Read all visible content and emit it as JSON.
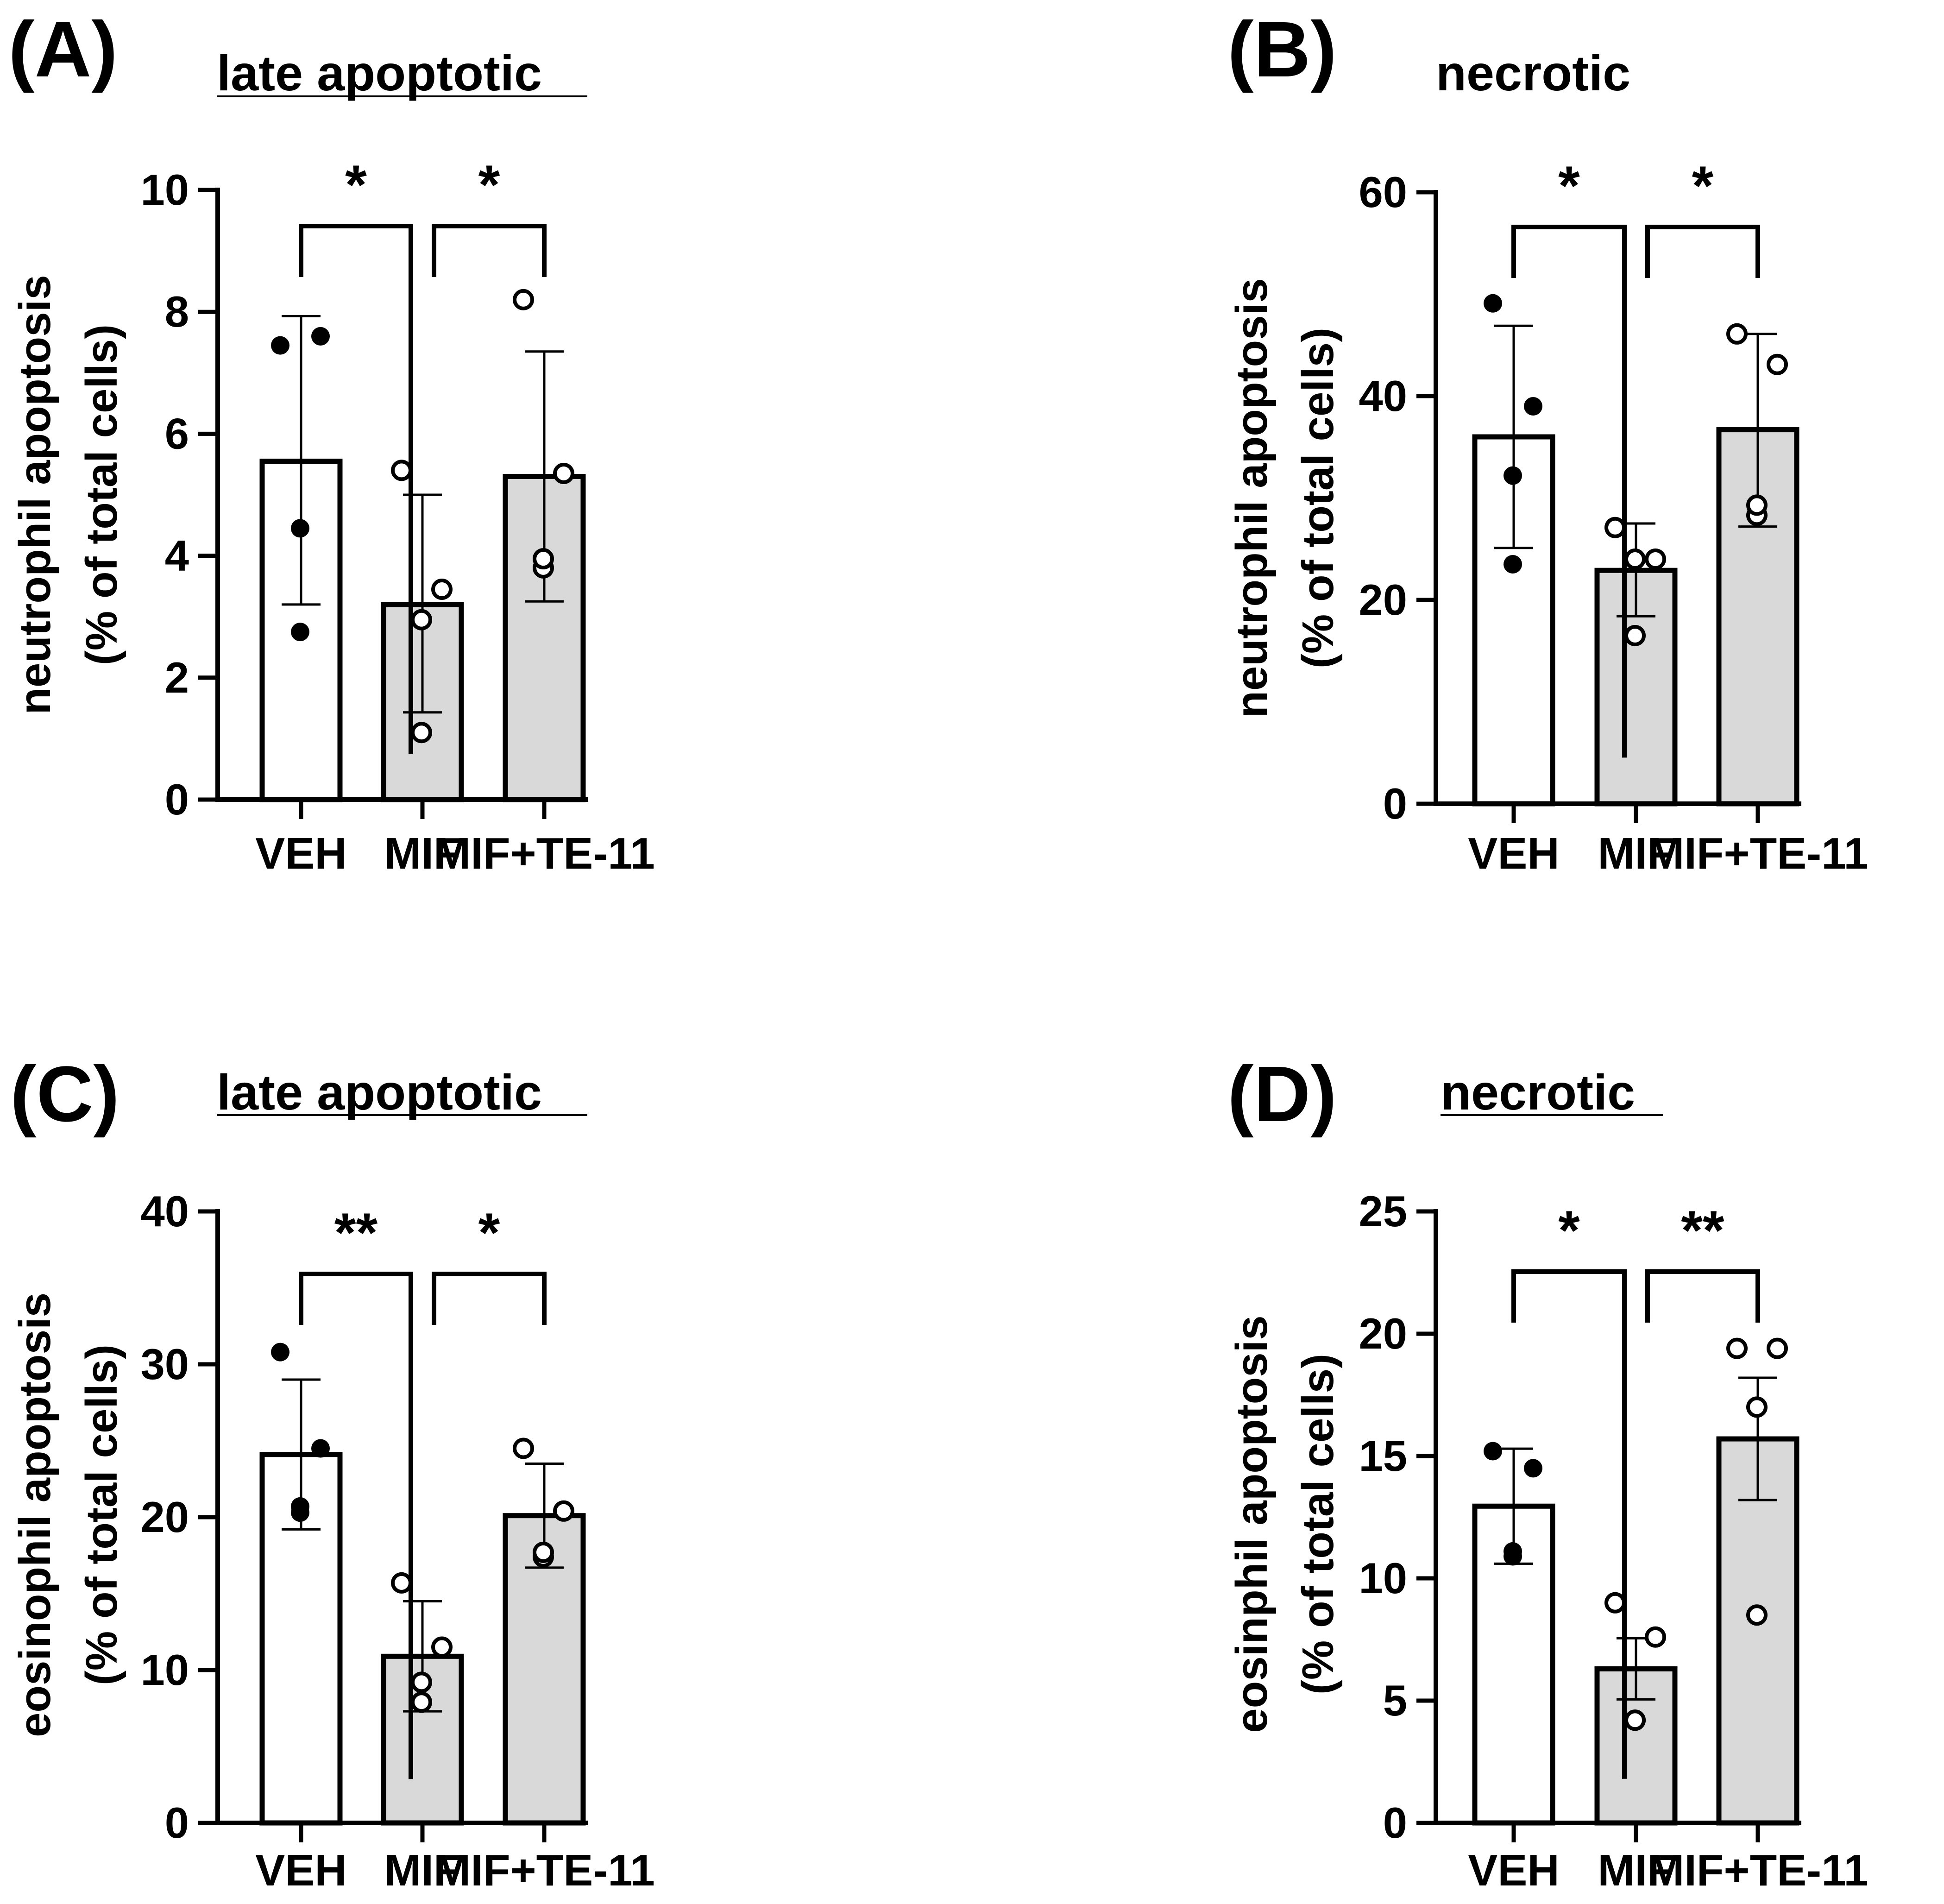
{
  "colors": {
    "veh_fill": "#ffffff",
    "treated_fill": "#d9d9d9",
    "stroke": "#000000"
  },
  "chart_data": [
    {
      "id": "A",
      "panel_label": "(A)",
      "title": "late apoptotic",
      "type": "bar",
      "ylabel_line1": "neutrophil apoptosis",
      "ylabel_line2": "(% of total cells)",
      "categories": [
        "VEH",
        "MIF",
        "MIF+TE-11"
      ],
      "ylim": [
        0,
        10
      ],
      "yticks": [
        0,
        2,
        4,
        6,
        8,
        10
      ],
      "series": [
        {
          "name": "VEH",
          "mean": 5.55,
          "sd_low": 3.2,
          "sd_high": 7.93,
          "points": [
            7.45,
            7.6,
            4.45,
            2.75
          ],
          "marker": "filled"
        },
        {
          "name": "MIF",
          "mean": 3.2,
          "sd_low": 1.43,
          "sd_high": 5.0,
          "points": [
            5.4,
            3.45,
            2.95,
            1.1
          ],
          "marker": "open"
        },
        {
          "name": "MIF+TE-11",
          "mean": 5.3,
          "sd_low": 3.25,
          "sd_high": 7.35,
          "points": [
            8.2,
            5.35,
            3.8,
            3.95
          ],
          "marker": "open"
        }
      ],
      "comparisons": [
        {
          "from": "VEH",
          "to": "MIF",
          "label": "*"
        },
        {
          "from": "MIF",
          "to": "MIF+TE-11",
          "label": "*"
        }
      ]
    },
    {
      "id": "B",
      "panel_label": "(B)",
      "title": "necrotic",
      "type": "bar",
      "ylabel_line1": "neutrophil apoptosis",
      "ylabel_line2": "(% of total cells)",
      "categories": [
        "VEH",
        "MIF",
        "MIF+TE-11"
      ],
      "ylim": [
        0,
        60
      ],
      "yticks": [
        0,
        20,
        40,
        60
      ],
      "series": [
        {
          "name": "VEH",
          "mean": 36,
          "sd_low": 25.1,
          "sd_high": 46.9,
          "points": [
            49.1,
            39.0,
            32.2,
            23.5
          ],
          "marker": "filled"
        },
        {
          "name": "MIF",
          "mean": 22.9,
          "sd_low": 18.4,
          "sd_high": 27.5,
          "points": [
            27.1,
            24.0,
            24.0,
            16.5
          ],
          "marker": "open"
        },
        {
          "name": "MIF+TE-11",
          "mean": 36.7,
          "sd_low": 27.2,
          "sd_high": 46.1,
          "points": [
            46.1,
            43.1,
            28.3,
            29.3
          ],
          "marker": "open"
        }
      ],
      "comparisons": [
        {
          "from": "VEH",
          "to": "MIF",
          "label": "*"
        },
        {
          "from": "MIF",
          "to": "MIF+TE-11",
          "label": "*"
        }
      ]
    },
    {
      "id": "C",
      "panel_label": "(C)",
      "title": "late apoptotic",
      "type": "bar",
      "ylabel_line1": "eosinophil apoptosis",
      "ylabel_line2": "(% of total cells)",
      "categories": [
        "VEH",
        "MIF",
        "MIF+TE-11"
      ],
      "ylim": [
        0,
        40
      ],
      "yticks": [
        0,
        10,
        20,
        30,
        40
      ],
      "series": [
        {
          "name": "VEH",
          "mean": 24.1,
          "sd_low": 19.2,
          "sd_high": 29.0,
          "points": [
            30.8,
            24.5,
            20.3,
            20.7
          ],
          "marker": "filled"
        },
        {
          "name": "MIF",
          "mean": 10.9,
          "sd_low": 7.3,
          "sd_high": 14.5,
          "points": [
            15.7,
            11.5,
            9.2,
            7.9
          ],
          "marker": "open"
        },
        {
          "name": "MIF+TE-11",
          "mean": 20.1,
          "sd_low": 16.7,
          "sd_high": 23.5,
          "points": [
            24.5,
            20.4,
            17.4,
            17.7
          ],
          "marker": "open"
        }
      ],
      "comparisons": [
        {
          "from": "VEH",
          "to": "MIF",
          "label": "**"
        },
        {
          "from": "MIF",
          "to": "MIF+TE-11",
          "label": "*"
        }
      ]
    },
    {
      "id": "D",
      "panel_label": "(D)",
      "title": "necrotic",
      "type": "bar",
      "ylabel_line1": "eosinphil apoptosis",
      "ylabel_line2": "(% of total cells)",
      "categories": [
        "VEH",
        "MIF",
        "MIF+TE-11"
      ],
      "ylim": [
        0,
        25
      ],
      "yticks": [
        0,
        5,
        10,
        15,
        20,
        25
      ],
      "series": [
        {
          "name": "VEH",
          "mean": 12.95,
          "sd_low": 10.6,
          "sd_high": 15.3,
          "points": [
            15.2,
            14.5,
            10.9,
            11.1
          ],
          "marker": "filled"
        },
        {
          "name": "MIF",
          "mean": 6.3,
          "sd_low": 5.05,
          "sd_high": 7.55,
          "points": [
            9.0,
            7.6,
            4.2,
            4.2
          ],
          "marker": "open"
        },
        {
          "name": "MIF+TE-11",
          "mean": 15.7,
          "sd_low": 13.2,
          "sd_high": 18.2,
          "points": [
            19.4,
            19.4,
            17.0,
            8.5
          ],
          "marker": "open"
        }
      ],
      "comparisons": [
        {
          "from": "VEH",
          "to": "MIF",
          "label": "*"
        },
        {
          "from": "MIF",
          "to": "MIF+TE-11",
          "label": "**"
        }
      ]
    }
  ]
}
